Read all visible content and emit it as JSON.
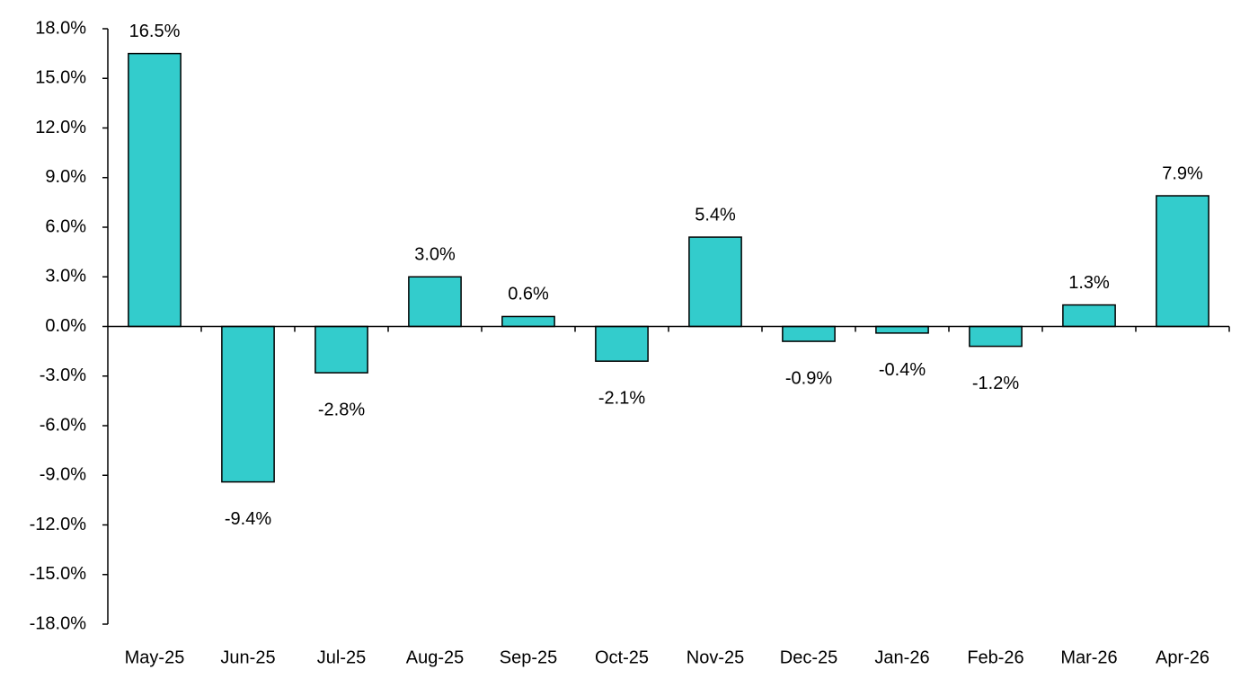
{
  "chart_data": {
    "type": "bar",
    "categories": [
      "May-25",
      "Jun-25",
      "Jul-25",
      "Aug-25",
      "Sep-25",
      "Oct-25",
      "Nov-25",
      "Dec-25",
      "Jan-26",
      "Feb-26",
      "Mar-26",
      "Apr-26"
    ],
    "values": [
      16.5,
      -9.4,
      -2.8,
      3.0,
      0.6,
      -2.1,
      5.4,
      -0.9,
      -0.4,
      -1.2,
      1.3,
      7.9
    ],
    "value_labels": [
      "16.5%",
      "-9.4%",
      "-2.8%",
      "3.0%",
      "0.6%",
      "-2.1%",
      "5.4%",
      "-0.9%",
      "-0.4%",
      "-1.2%",
      "1.3%",
      "7.9%"
    ],
    "color": "#33cccc",
    "ylim": [
      -18,
      18
    ],
    "yticks": [
      {
        "value": -18,
        "label": "-18.0%"
      },
      {
        "value": -15,
        "label": "-15.0%"
      },
      {
        "value": -12,
        "label": "-12.0%"
      },
      {
        "value": -9,
        "label": "-9.0%"
      },
      {
        "value": -6,
        "label": "-6.0%"
      },
      {
        "value": -3,
        "label": "-3.0%"
      },
      {
        "value": 0,
        "label": "0.0%"
      },
      {
        "value": 3,
        "label": "3.0%"
      },
      {
        "value": 6,
        "label": "6.0%"
      },
      {
        "value": 9,
        "label": "9.0%"
      },
      {
        "value": 12,
        "label": "12.0%"
      },
      {
        "value": 15,
        "label": "15.0%"
      },
      {
        "value": 18,
        "label": "18.0%"
      }
    ],
    "grid": false
  }
}
